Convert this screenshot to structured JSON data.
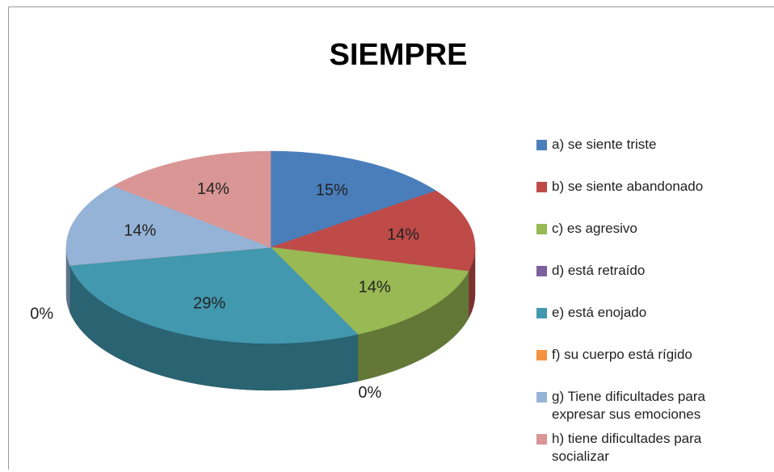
{
  "chart_data": {
    "type": "pie",
    "title": "SIEMPRE",
    "categories": [
      "a) se siente triste",
      "b) se siente abandonado",
      "c) es agresivo",
      "d) está retraído",
      "e) está enojado",
      "f) su cuerpo está rígido",
      "g) Tiene dificultades para expresar sus emociones",
      "h) tiene dificultades  para socializar"
    ],
    "values": [
      15,
      14,
      14,
      0,
      29,
      0,
      14,
      14
    ],
    "value_labels": [
      "15%",
      "14%",
      "14%",
      "0%",
      "29%",
      "0%",
      "14%",
      "14%"
    ],
    "colors": [
      "#4a7ebb",
      "#be4b48",
      "#98b954",
      "#7d60a0",
      "#4198af",
      "#f69240",
      "#95b3d7",
      "#d99694"
    ],
    "legend": "right"
  }
}
